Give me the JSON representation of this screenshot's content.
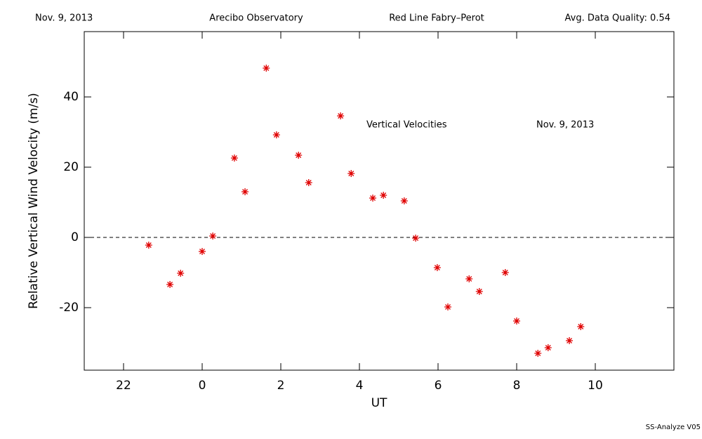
{
  "header": {
    "date": "Nov. 9, 2013",
    "site": "Arecibo Observatory",
    "instrument": "Red Line Fabry–Perot",
    "quality": "Avg. Data Quality: 0.54"
  },
  "footer": "SS-Analyze V05",
  "chart_data": {
    "type": "scatter",
    "xlabel": "UT",
    "ylabel": "Relative Vertical Wind Velocity (m/s)",
    "annotations": [
      "Vertical Velocities",
      "Nov. 9, 2013"
    ],
    "reference_line": 0,
    "xlim": [
      -3,
      12
    ],
    "ylim": [
      -37.8,
      58.6
    ],
    "xticks": [
      {
        "value": -2,
        "label": "22"
      },
      0,
      2,
      4,
      6,
      8,
      10
    ],
    "yticks": [
      -20,
      0,
      20,
      40
    ],
    "series": [
      {
        "name": "Vertical Velocities",
        "color": "#e00000",
        "x": [
          -1.36,
          -0.82,
          -0.55,
          0,
          0.27,
          0.82,
          1.09,
          1.63,
          1.89,
          2.45,
          2.71,
          3.52,
          3.79,
          4.34,
          4.61,
          5.14,
          5.43,
          5.98,
          6.25,
          6.79,
          7.05,
          7.71,
          8.0,
          8.54,
          8.8,
          9.34,
          9.63
        ],
        "values": [
          -2.2,
          -13.4,
          -10.2,
          -4,
          0.4,
          22.6,
          13,
          48.2,
          29.2,
          23.4,
          15.6,
          34.6,
          18.2,
          11.2,
          12,
          10.4,
          -0.2,
          -8.6,
          -19.8,
          -11.8,
          -15.4,
          -10,
          -23.8,
          -33,
          -31.4,
          -29.4,
          -25.4
        ]
      }
    ]
  }
}
